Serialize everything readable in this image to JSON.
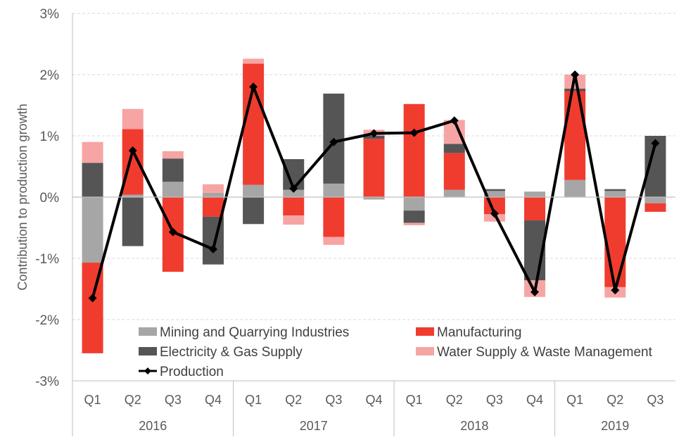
{
  "chart_data": {
    "type": "bar",
    "stacked": true,
    "ylabel": "Contribution to production growth",
    "ylim": [
      -3,
      3
    ],
    "yticks": [
      "-3%",
      "-2%",
      "-1%",
      "0%",
      "1%",
      "2%",
      "3%"
    ],
    "ytick_values": [
      -3,
      -2,
      -1,
      0,
      1,
      2,
      3
    ],
    "grid": "horizontal dashed",
    "legend_position": "bottom-inside",
    "years": [
      {
        "label": "2016",
        "count": 4
      },
      {
        "label": "2017",
        "count": 4
      },
      {
        "label": "2018",
        "count": 4
      },
      {
        "label": "2019",
        "count": 3
      }
    ],
    "categories": [
      "Q1",
      "Q2",
      "Q3",
      "Q4",
      "Q1",
      "Q2",
      "Q3",
      "Q4",
      "Q1",
      "Q2",
      "Q3",
      "Q4",
      "Q1",
      "Q2",
      "Q3"
    ],
    "series": [
      {
        "name": "Mining and Quarrying Industries",
        "color": "#a6a6a6",
        "values": [
          -1.07,
          0.04,
          0.25,
          0.07,
          0.2,
          0.12,
          0.22,
          -0.04,
          -0.22,
          0.12,
          0.1,
          0.09,
          0.28,
          0.1,
          -0.1
        ]
      },
      {
        "name": "Manufacturing",
        "color": "#f03c2e",
        "values": [
          -1.48,
          1.07,
          -1.22,
          -0.32,
          1.98,
          -0.3,
          -0.65,
          0.95,
          1.52,
          0.6,
          -0.28,
          -0.38,
          1.45,
          -1.47,
          -0.14
        ]
      },
      {
        "name": "Electricity & Gas Supply",
        "color": "#555555",
        "values": [
          0.56,
          -0.8,
          0.38,
          -0.78,
          -0.44,
          0.5,
          1.47,
          0.05,
          -0.2,
          0.15,
          0.03,
          -0.98,
          0.04,
          0.03,
          1.0
        ]
      },
      {
        "name": "Water Supply & Waste Management",
        "color": "#f6a5a4",
        "values": [
          0.34,
          0.33,
          0.12,
          0.14,
          0.08,
          -0.15,
          -0.13,
          0.1,
          -0.04,
          0.39,
          -0.12,
          -0.27,
          0.23,
          -0.17,
          0
        ]
      },
      {
        "name": "Production",
        "type": "line",
        "color": "#000000",
        "values": [
          -1.65,
          0.76,
          -0.57,
          -0.85,
          1.8,
          0.14,
          0.9,
          1.04,
          1.05,
          1.25,
          -0.27,
          -1.55,
          2.0,
          -1.52,
          0.88
        ]
      }
    ]
  }
}
